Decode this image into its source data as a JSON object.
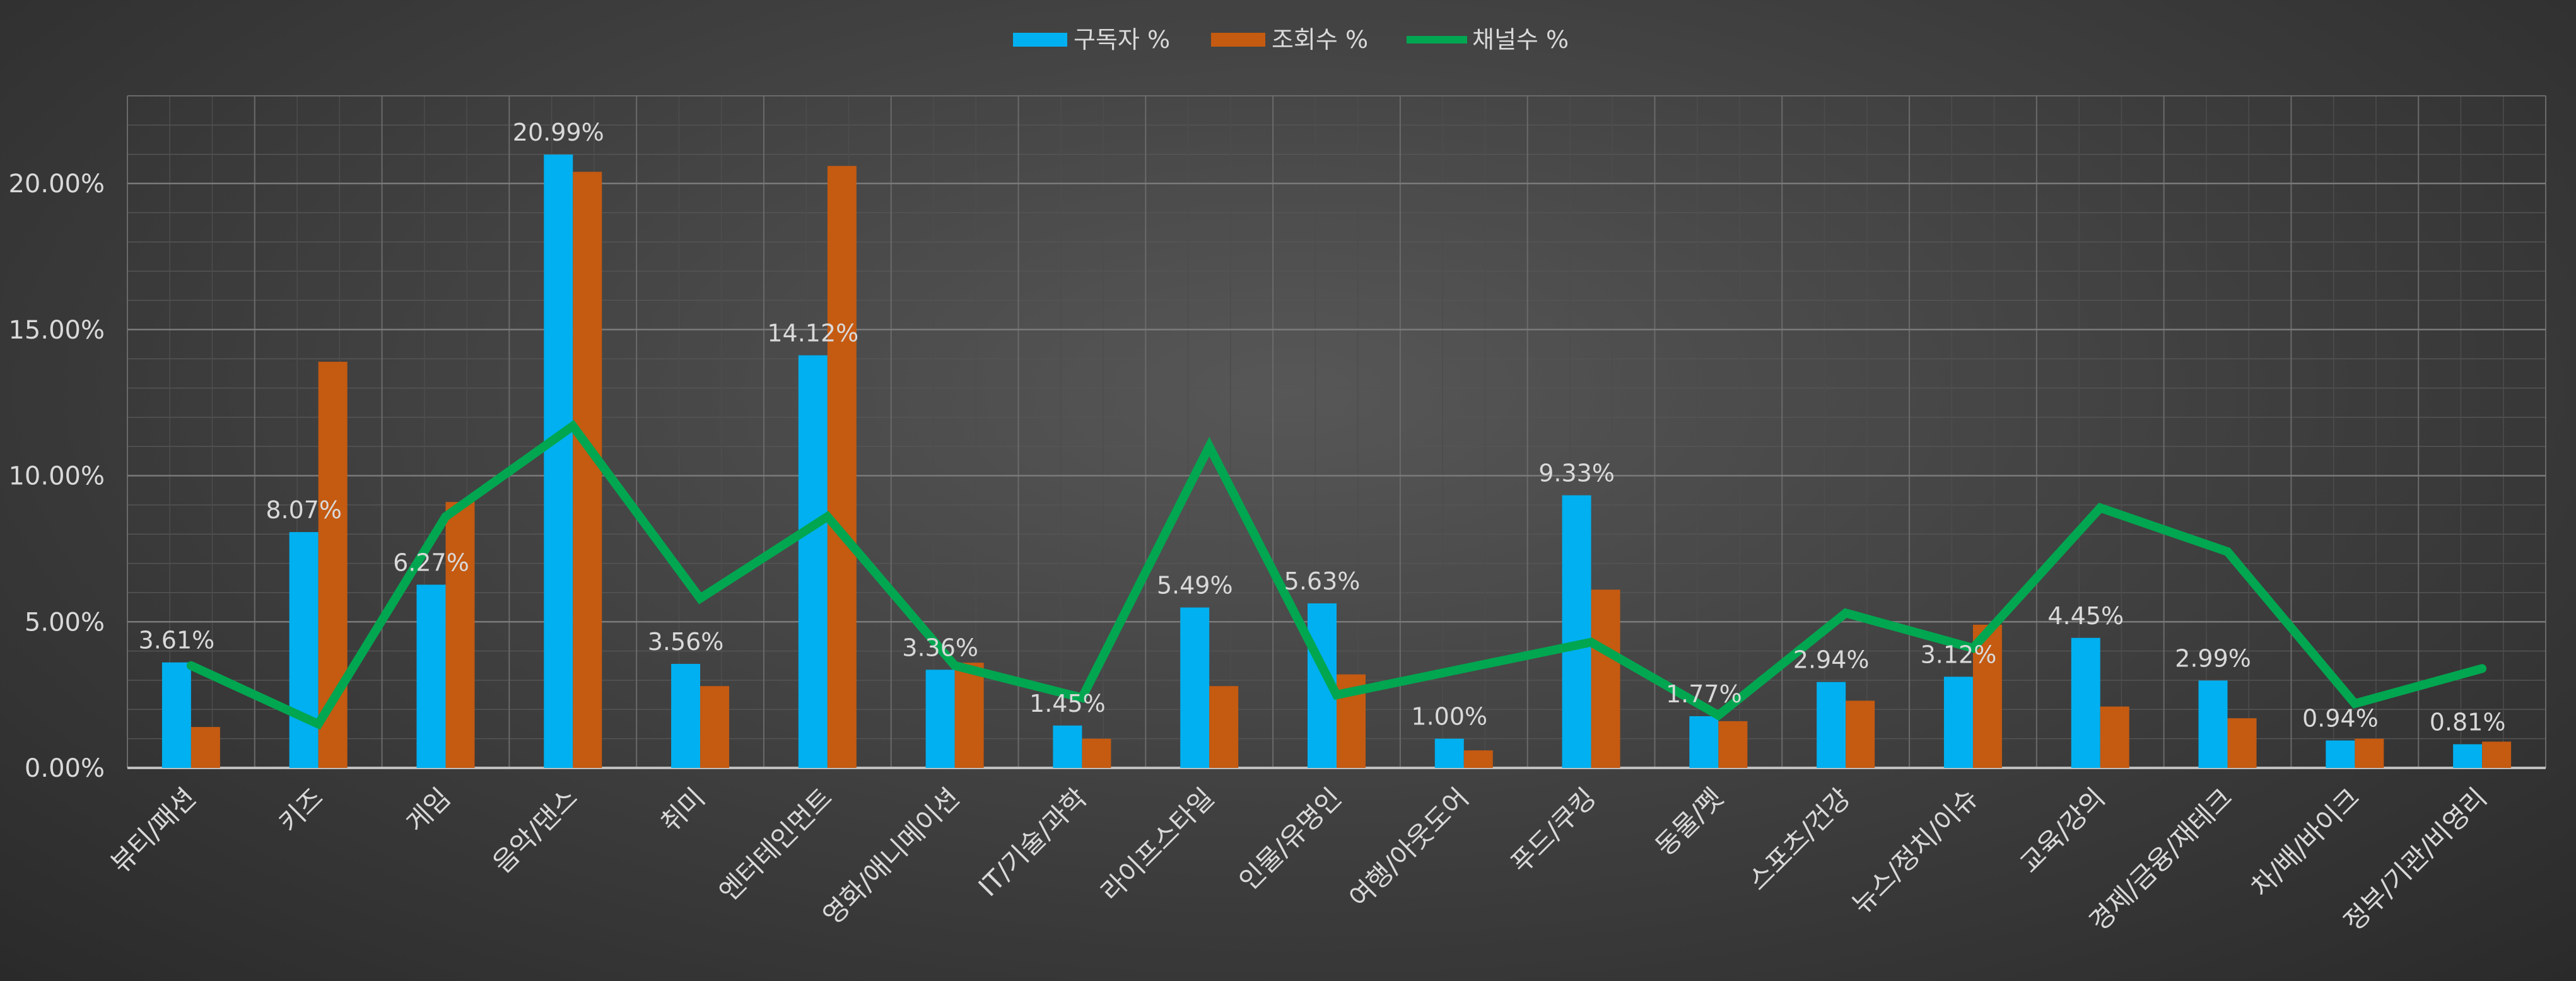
{
  "chart_data": {
    "type": "bar",
    "categories": [
      "뷰티/패션",
      "키즈",
      "게임",
      "음악/댄스",
      "취미",
      "엔터테인먼트",
      "영화/애니메이션",
      "IT/기술/과학",
      "라이프스타일",
      "인물/유명인",
      "여행/아웃도어",
      "푸드/쿠킹",
      "동물/펫",
      "스포츠/건강",
      "뉴스/정치/이슈",
      "교육/강의",
      "경제/금융/재테크",
      "차/배/바이크",
      "정부/기관/비영리"
    ],
    "series": [
      {
        "name": "구독자 %",
        "type": "bar",
        "color": "#00b0f0",
        "values": [
          3.61,
          8.07,
          6.27,
          20.99,
          3.56,
          14.12,
          3.36,
          1.45,
          5.49,
          5.63,
          1.0,
          9.33,
          1.77,
          2.94,
          3.12,
          4.45,
          2.99,
          0.94,
          0.81
        ],
        "labels": [
          "3.61%",
          "8.07%",
          "6.27%",
          "20.99%",
          "3.56%",
          "14.12%",
          "3.36%",
          "1.45%",
          "5.49%",
          "5.63%",
          "1.00%",
          "9.33%",
          "1.77%",
          "2.94%",
          "3.12%",
          "4.45%",
          "2.99%",
          "0.94%",
          "0.81%"
        ]
      },
      {
        "name": "조회수 %",
        "type": "bar",
        "color": "#c55a11",
        "values": [
          1.4,
          13.9,
          9.1,
          20.4,
          2.8,
          20.6,
          3.6,
          1.0,
          2.8,
          3.2,
          0.6,
          6.1,
          1.6,
          2.3,
          4.9,
          2.1,
          1.7,
          1.0,
          0.9
        ]
      },
      {
        "name": "채널수 %",
        "type": "line",
        "color": "#00a650",
        "values": [
          3.5,
          1.5,
          8.6,
          11.7,
          5.8,
          8.6,
          3.5,
          2.4,
          11.0,
          2.5,
          3.4,
          4.3,
          1.8,
          5.3,
          4.1,
          8.9,
          7.4,
          2.2,
          3.4
        ]
      }
    ],
    "y_ticks": [
      "0.00%",
      "5.00%",
      "10.00%",
      "15.00%",
      "20.00%"
    ],
    "ylim": [
      0,
      23
    ],
    "grid": true,
    "legend_position": "top-center",
    "title": "",
    "xlabel": "",
    "ylabel": ""
  }
}
